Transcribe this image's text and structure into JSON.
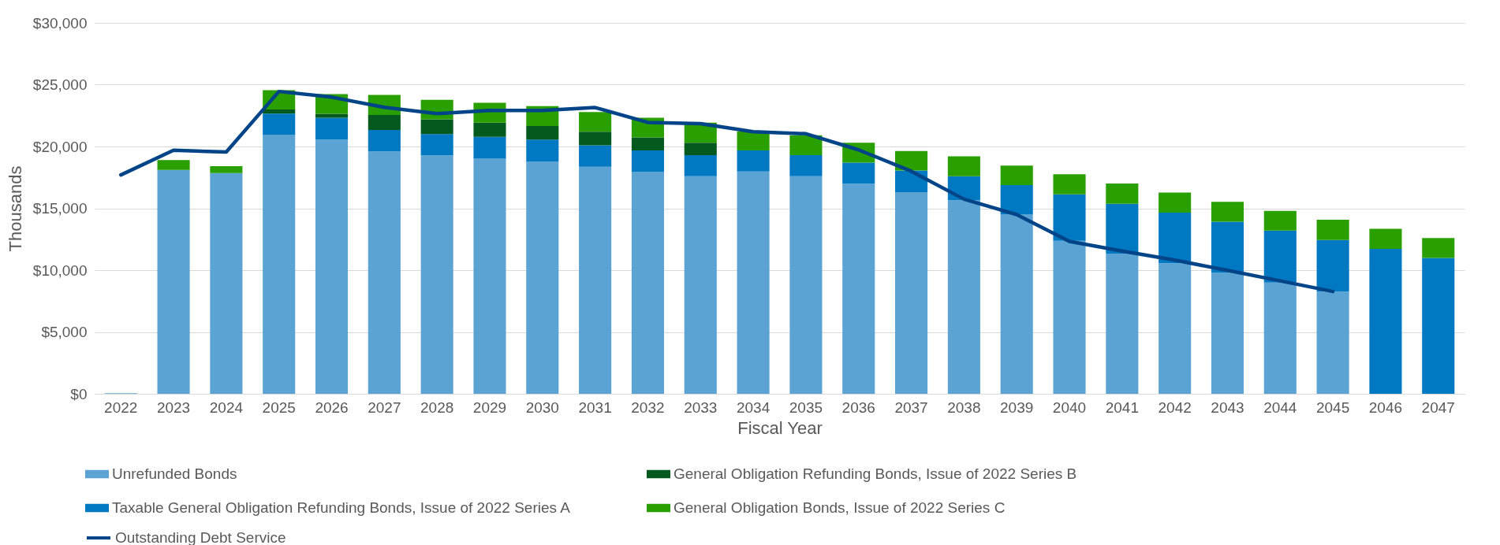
{
  "chart_data": {
    "type": "bar",
    "stacked": true,
    "xlabel": "Fiscal Year",
    "ylabel": "Thousands",
    "categories": [
      "2022",
      "2023",
      "2024",
      "2025",
      "2026",
      "2027",
      "2028",
      "2029",
      "2030",
      "2031",
      "2032",
      "2033",
      "2034",
      "2035",
      "2036",
      "2037",
      "2038",
      "2039",
      "2040",
      "2041",
      "2042",
      "2043",
      "2044",
      "2045",
      "2046",
      "2047"
    ],
    "series": [
      {
        "name": "Unrefunded Bonds",
        "color": "#5ba3d3",
        "values": [
          50,
          18100,
          17850,
          20930,
          20550,
          19600,
          19280,
          19020,
          18790,
          18360,
          17930,
          17600,
          17980,
          17600,
          16990,
          16300,
          15660,
          14490,
          12370,
          11330,
          10550,
          9770,
          9000,
          8270,
          null,
          null
        ]
      },
      {
        "name": "Taxable General Obligation Refunding Bonds, Issue of 2022 Series A",
        "color": "#0078c2",
        "values": [
          null,
          null,
          null,
          1730,
          1780,
          1740,
          1720,
          1760,
          1760,
          1730,
          1750,
          1700,
          1700,
          1700,
          1700,
          1750,
          1940,
          2390,
          3760,
          4040,
          4100,
          4150,
          4200,
          4170,
          11720,
          10990
        ]
      },
      {
        "name": "General Obligation Refunding Bonds, Issue of 2022 Series B",
        "color": "#03591e",
        "values": [
          null,
          null,
          null,
          330,
          310,
          1200,
          1200,
          1150,
          1100,
          1100,
          1050,
          1000,
          null,
          null,
          null,
          null,
          null,
          null,
          null,
          null,
          null,
          null,
          null,
          null,
          null,
          null
        ]
      },
      {
        "name": "General Obligation Bonds, Issue of 2022 Series C",
        "color": "#299f00",
        "values": [
          null,
          800,
          550,
          1570,
          1600,
          1630,
          1580,
          1600,
          1620,
          1600,
          1600,
          1630,
          1530,
          1600,
          1610,
          1580,
          1610,
          1580,
          1630,
          1630,
          1630,
          1610,
          1600,
          1640,
          1630,
          1610
        ]
      },
      {
        "name": "Outstanding Debt Service",
        "type": "line",
        "color": "#014487",
        "values": [
          17700,
          19700,
          19550,
          24450,
          23990,
          23170,
          22660,
          22920,
          22920,
          23150,
          21950,
          21850,
          21190,
          21030,
          19730,
          18000,
          15740,
          14490,
          12320,
          11540,
          10810,
          9980,
          9130,
          8270,
          null,
          null
        ]
      }
    ],
    "ylim": [
      0,
      30000
    ],
    "yticks": [
      {
        "value": 0,
        "label": "$0"
      },
      {
        "value": 5000,
        "label": "$5,000"
      },
      {
        "value": 10000,
        "label": "$10,000"
      },
      {
        "value": 15000,
        "label": "$15,000"
      },
      {
        "value": 20000,
        "label": "$20,000"
      },
      {
        "value": 25000,
        "label": "$25,000"
      },
      {
        "value": 30000,
        "label": "$30,000"
      }
    ],
    "grid": "y",
    "legend": "bottom"
  }
}
